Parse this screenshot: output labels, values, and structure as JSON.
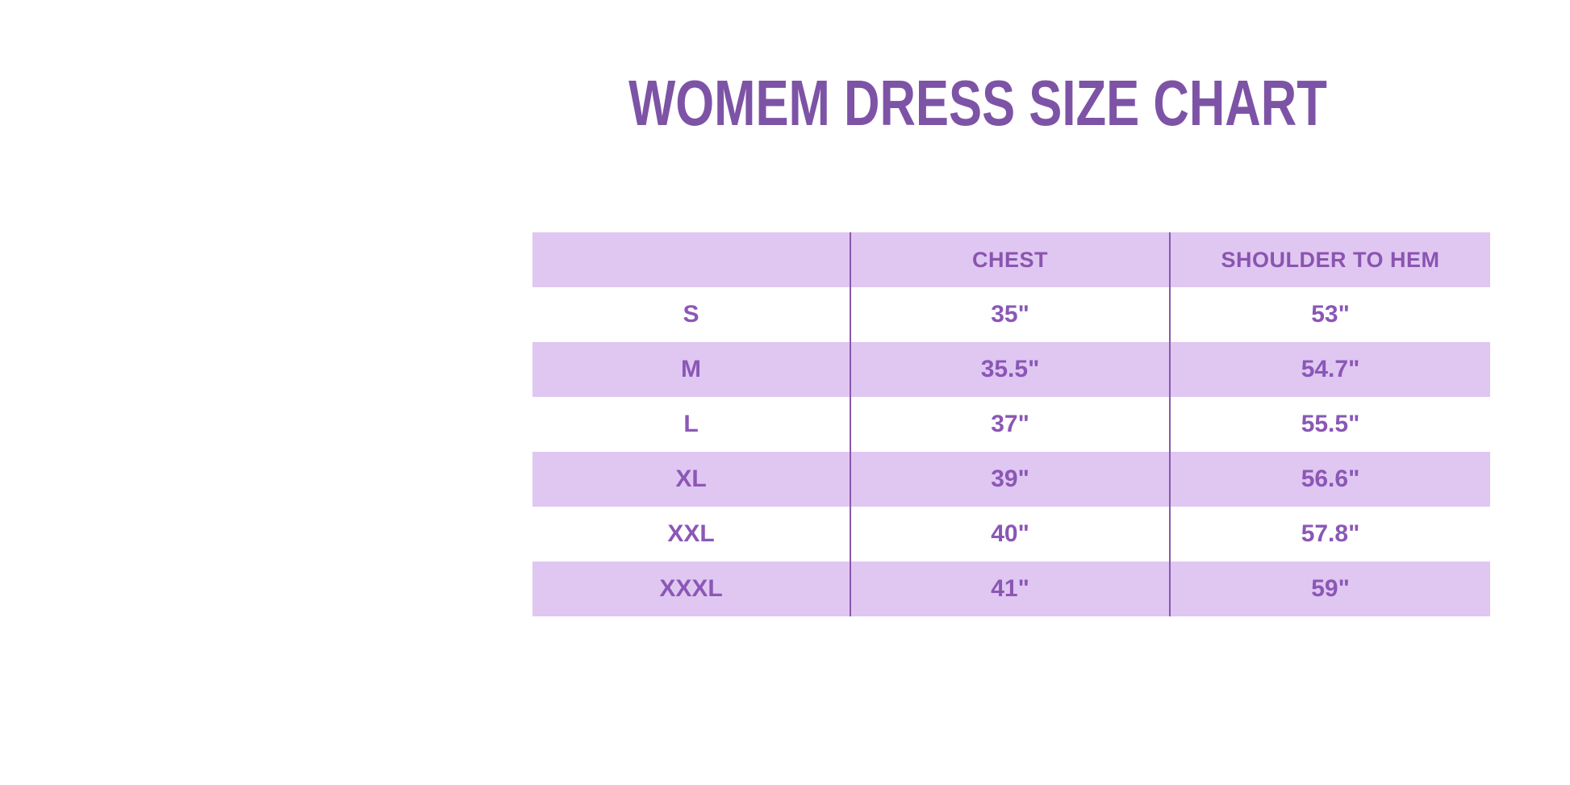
{
  "title": {
    "text": "WOMEM DRESS SIZE CHART"
  },
  "colors": {
    "page-bg": "#ffffff",
    "title": "#7d53a6",
    "header-text": "#8a54b0",
    "cell-text": "#8b57b6",
    "row-bg": "#dfc7f1",
    "line": "#8a57ae"
  },
  "chart_data": {
    "type": "table",
    "title": "WOMEM DRESS SIZE CHART",
    "columns": [
      "",
      "CHEST",
      "SHOULDER TO HEM"
    ],
    "rows": [
      [
        "S",
        "35\"",
        "53\""
      ],
      [
        "M",
        "35.5\"",
        "54.7\""
      ],
      [
        "L",
        "37\"",
        "55.5\""
      ],
      [
        "XL",
        "39\"",
        "56.6\""
      ],
      [
        "XXL",
        "40\"",
        "57.8\""
      ],
      [
        "XXXL",
        "41\"",
        "59\""
      ]
    ],
    "layout": {
      "header_background": "striped-purple",
      "stripe_pattern": [
        "purple",
        "white",
        "purple",
        "white",
        "purple",
        "white",
        "purple"
      ],
      "column_dividers": true
    }
  }
}
